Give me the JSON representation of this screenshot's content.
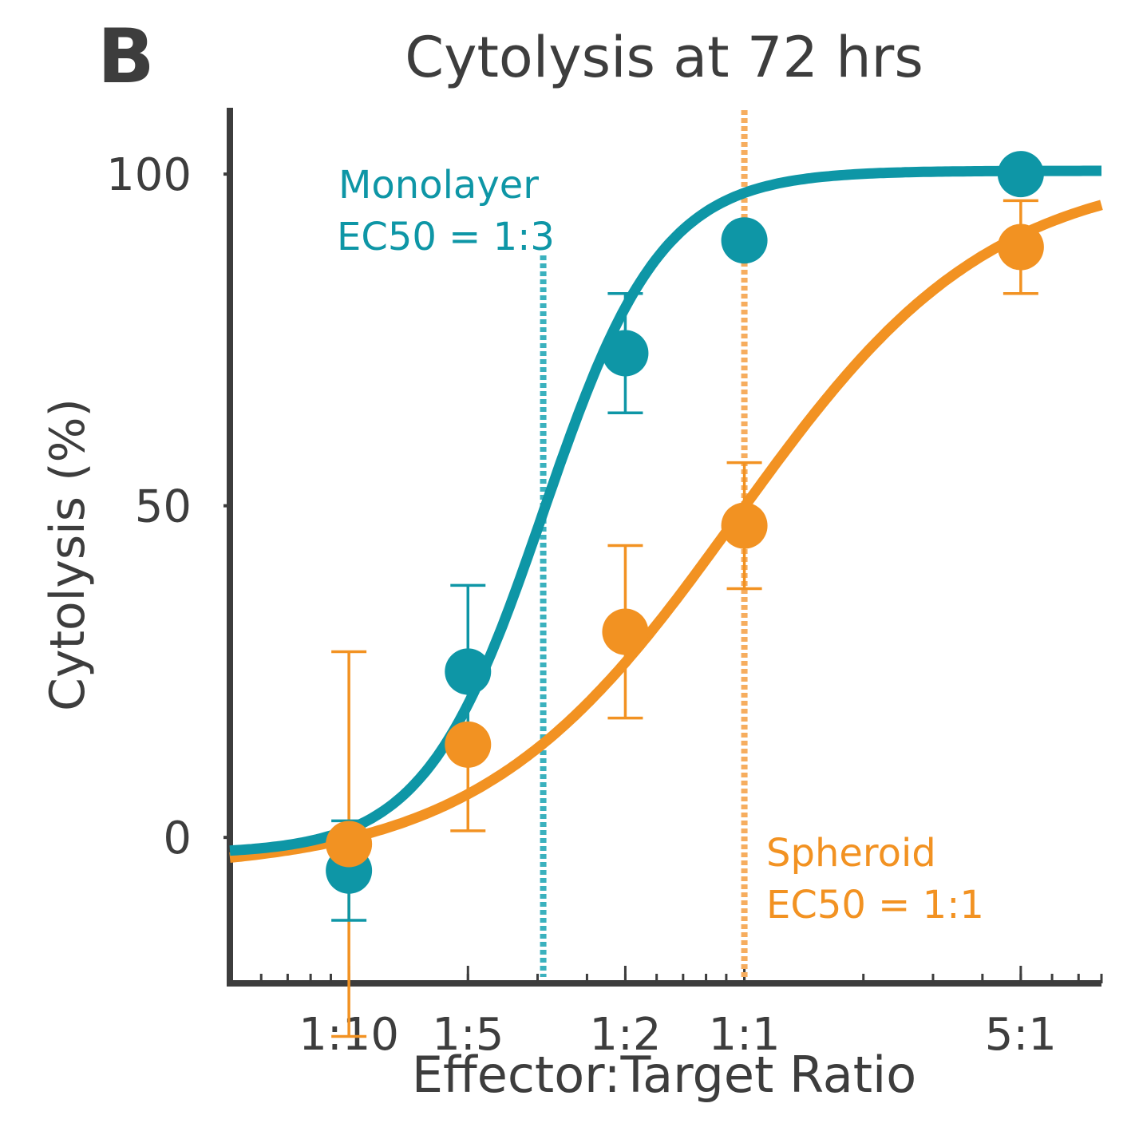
{
  "panel_label": "B",
  "chart_data": {
    "type": "scatter",
    "title": "Cytolysis at 72 hrs",
    "xlabel": "Effector:Target Ratio",
    "ylabel": "Cytolysis (%)",
    "x_scale": "log10",
    "xlim": [
      0.05,
      8
    ],
    "ylim": [
      -22,
      110
    ],
    "x_ticks": [
      {
        "value": 0.1,
        "label": "1:10"
      },
      {
        "value": 0.2,
        "label": "1:5"
      },
      {
        "value": 0.5,
        "label": "1:2"
      },
      {
        "value": 1,
        "label": "1:1"
      },
      {
        "value": 5,
        "label": "5:1"
      }
    ],
    "y_ticks": [
      {
        "value": 0,
        "label": "0"
      },
      {
        "value": 50,
        "label": "50"
      },
      {
        "value": 100,
        "label": "100"
      }
    ],
    "series": [
      {
        "name": "Monolayer",
        "color": "#0e96a6",
        "x": [
          0.1,
          0.2,
          0.5,
          1,
          5
        ],
        "y": [
          -5,
          25,
          73,
          90,
          100
        ],
        "error": [
          7.5,
          13,
          9,
          0,
          0
        ],
        "fit": {
          "bottom": -2.5,
          "top": 100.5,
          "ec50": 0.31,
          "hill": 2.9
        },
        "annotation": {
          "name": "Monolayer",
          "ec50_label": "EC50 = 1:3"
        },
        "ec50_x": 0.31
      },
      {
        "name": "Spheroid",
        "color": "#f29222",
        "x": [
          0.1,
          0.2,
          0.5,
          1,
          5
        ],
        "y": [
          -1,
          14,
          31,
          47,
          89
        ],
        "error": [
          29,
          13,
          13,
          9.5,
          7
        ],
        "fit": {
          "bottom": -5,
          "top": 101,
          "ec50": 0.95,
          "hill": 1.35
        },
        "annotation": {
          "name": "Spheroid",
          "ec50_label": "EC50 = 1:1"
        },
        "ec50_x": 1
      }
    ]
  }
}
